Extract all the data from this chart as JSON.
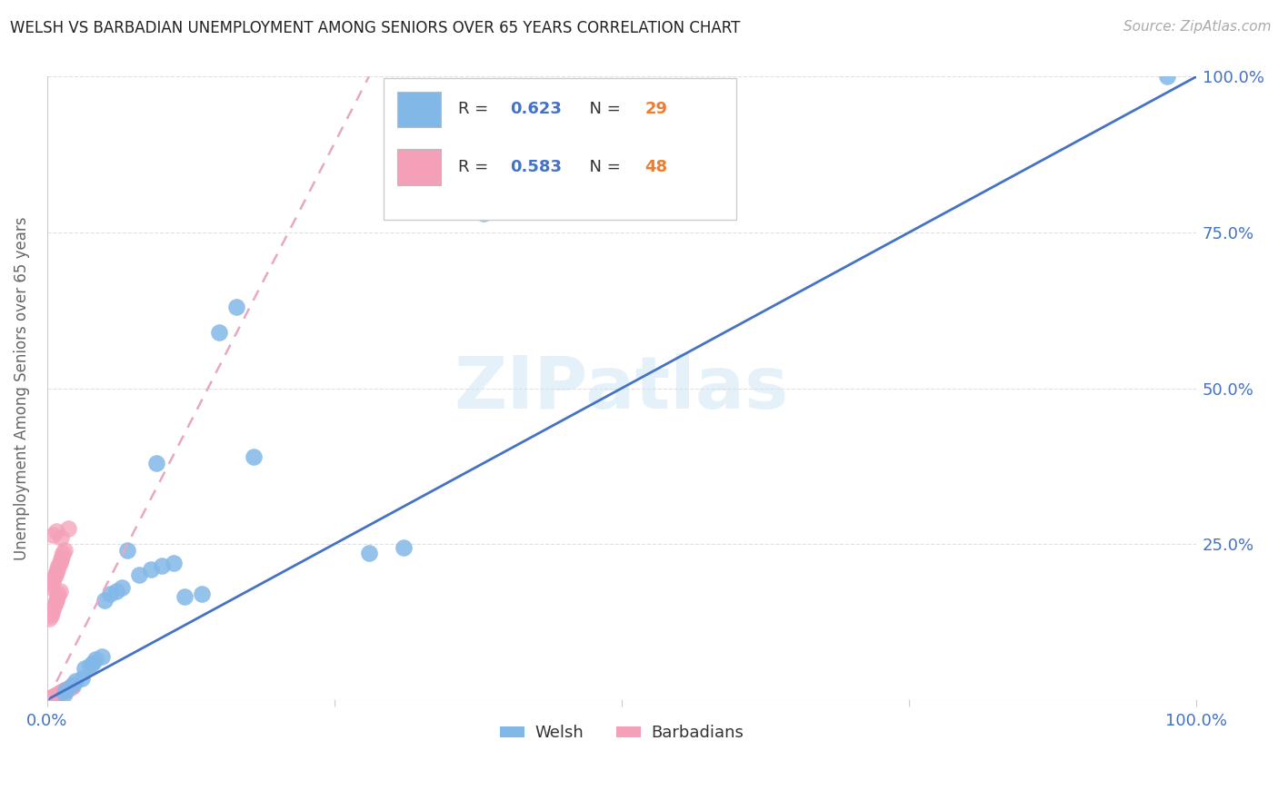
{
  "title": "WELSH VS BARBADIAN UNEMPLOYMENT AMONG SENIORS OVER 65 YEARS CORRELATION CHART",
  "source": "Source: ZipAtlas.com",
  "ylabel": "Unemployment Among Seniors over 65 years",
  "watermark": "ZIPatlas",
  "xlim": [
    0,
    1.0
  ],
  "ylim": [
    0,
    1.0
  ],
  "welsh_color": "#82b8e8",
  "barbadian_color": "#f4a0b8",
  "blue_line_color": "#4472c4",
  "pink_line_color": "#e8a8c0",
  "welsh_R": "0.623",
  "welsh_N": "29",
  "barbadian_R": "0.583",
  "barbadian_N": "48",
  "R_color": "#4472c4",
  "N_color": "#ed7d31",
  "grid_color": "#e0e0e0",
  "tick_color": "#4472c4",
  "welsh_x": [
    0.015,
    0.016,
    0.022,
    0.025,
    0.03,
    0.033,
    0.037,
    0.04,
    0.042,
    0.048,
    0.05,
    0.055,
    0.06,
    0.065,
    0.07,
    0.08,
    0.09,
    0.095,
    0.1,
    0.11,
    0.12,
    0.135,
    0.15,
    0.165,
    0.18,
    0.28,
    0.31,
    0.38,
    0.975
  ],
  "welsh_y": [
    0.01,
    0.015,
    0.025,
    0.03,
    0.035,
    0.05,
    0.055,
    0.06,
    0.065,
    0.07,
    0.16,
    0.17,
    0.175,
    0.18,
    0.24,
    0.2,
    0.21,
    0.38,
    0.215,
    0.22,
    0.165,
    0.17,
    0.59,
    0.63,
    0.39,
    0.235,
    0.245,
    0.78,
    1.0
  ],
  "barbadian_x": [
    0.002,
    0.003,
    0.004,
    0.005,
    0.006,
    0.007,
    0.008,
    0.009,
    0.01,
    0.011,
    0.012,
    0.013,
    0.014,
    0.015,
    0.016,
    0.017,
    0.018,
    0.019,
    0.02,
    0.021,
    0.022,
    0.003,
    0.004,
    0.005,
    0.006,
    0.007,
    0.008,
    0.009,
    0.01,
    0.011,
    0.012,
    0.013,
    0.014,
    0.015,
    0.002,
    0.003,
    0.004,
    0.005,
    0.006,
    0.007,
    0.008,
    0.009,
    0.01,
    0.011,
    0.012,
    0.005,
    0.008,
    0.018
  ],
  "barbadian_y": [
    0.002,
    0.003,
    0.004,
    0.005,
    0.006,
    0.007,
    0.008,
    0.009,
    0.01,
    0.011,
    0.012,
    0.013,
    0.014,
    0.015,
    0.016,
    0.017,
    0.018,
    0.019,
    0.02,
    0.021,
    0.022,
    0.18,
    0.185,
    0.19,
    0.195,
    0.2,
    0.205,
    0.21,
    0.215,
    0.22,
    0.225,
    0.23,
    0.235,
    0.24,
    0.13,
    0.135,
    0.14,
    0.145,
    0.15,
    0.155,
    0.16,
    0.165,
    0.17,
    0.175,
    0.26,
    0.265,
    0.27,
    0.275
  ],
  "welsh_line_x": [
    0.0,
    1.0
  ],
  "welsh_line_y": [
    0.0,
    1.0
  ],
  "barbadian_line_x": [
    0.0,
    0.28
  ],
  "barbadian_line_y": [
    0.0,
    1.0
  ],
  "background": "#ffffff"
}
